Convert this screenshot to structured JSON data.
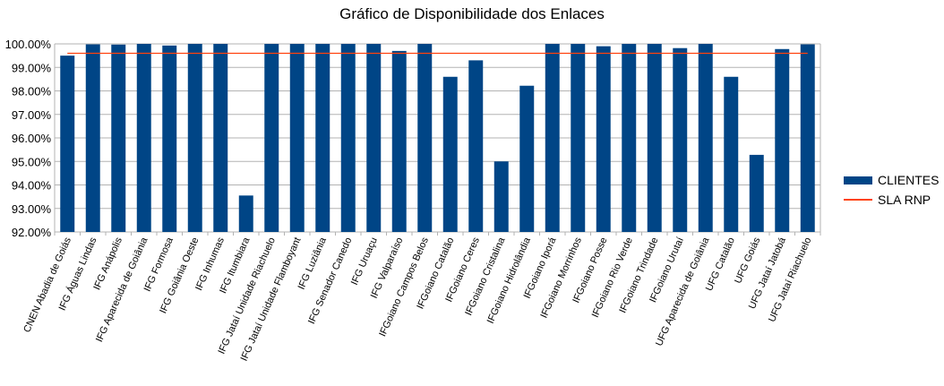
{
  "chart_data": {
    "type": "bar",
    "title": "Gráfico de Disponibilidade dos Enlaces",
    "categories": [
      "CNEN Abadia de Goiás",
      "IFG Águas Lindas",
      "IFG Anápolis",
      "IFG Aparecida de Goiânia",
      "IFG Formosa",
      "IFG Goiânia Oeste",
      "IFG Inhumas",
      "IFG Itumbiara",
      "IFG Jataí Unidade Riachuelo",
      "IFG Jataí Unidade Flamboyant",
      "IFG Luziânia",
      "IFG Senador Canedo",
      "IFG Uruaçu",
      "IFG Valparaíso",
      "IFGoiano Campos Belos",
      "IFGoiano Catalão",
      "IFGoiano Ceres",
      "IFGoiano Cristalina",
      "IFGoiano Hidrolândia",
      "IFGoiano Iporá",
      "IFGoiano Morrinhos",
      "IFGoiano Posse",
      "IFGoiano Rio Verde",
      "IFGoiano Trindade",
      "IFGoiano Urutaí",
      "UFG Aparecida de Goiânia",
      "UFG Catalão",
      "UFG Goiás",
      "UFG Jataí Jatobá",
      "UFG Jataí Riachuelo"
    ],
    "series": [
      {
        "name": "CLIENTES",
        "color": "#004586",
        "values": [
          99.5,
          99.98,
          99.97,
          100.0,
          99.93,
          100.0,
          100.0,
          93.55,
          100.0,
          100.0,
          100.0,
          100.0,
          100.0,
          99.7,
          100.0,
          98.6,
          99.3,
          95.0,
          98.22,
          100.0,
          100.0,
          99.9,
          100.0,
          100.0,
          99.82,
          100.0,
          98.6,
          95.28,
          99.78,
          99.98
        ]
      },
      {
        "name": "SLA RNP",
        "color": "#ff420e",
        "type": "line",
        "value": 99.6
      }
    ],
    "ylim": [
      92.0,
      100.0
    ],
    "yticks": [
      "92.00%",
      "93.00%",
      "94.00%",
      "95.00%",
      "96.00%",
      "97.00%",
      "98.00%",
      "99.00%",
      "100.00%"
    ],
    "grid": true,
    "legend_position": "right"
  },
  "legend": {
    "items": [
      {
        "label": "CLIENTES",
        "color": "#004586",
        "kind": "bar"
      },
      {
        "label": "SLA RNP",
        "color": "#ff420e",
        "kind": "line"
      }
    ]
  }
}
